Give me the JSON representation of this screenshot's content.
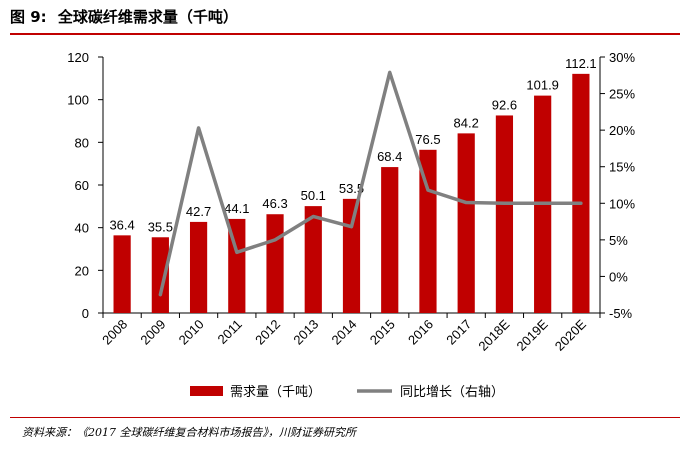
{
  "figure": {
    "label": "图 9:",
    "title": "全球碳纤维需求量（千吨）"
  },
  "source": "资料来源：《2017 全球碳纤维复合材料市场报告》，川财证券研究所",
  "colors": {
    "bar": "#c00000",
    "line": "#808080",
    "rule": "#c00000"
  },
  "chart_data": {
    "type": "bar+line",
    "title": "全球碳纤维需求量（千吨）",
    "categories": [
      "2008",
      "2009",
      "2010",
      "2011",
      "2012",
      "2013",
      "2014",
      "2015",
      "2016",
      "2017",
      "2018E",
      "2019E",
      "2020E"
    ],
    "series": [
      {
        "name": "需求量（千吨）",
        "type": "bar",
        "axis": "left",
        "values": [
          36.4,
          35.5,
          42.7,
          44.1,
          46.3,
          50.1,
          53.5,
          68.4,
          76.5,
          84.2,
          92.6,
          101.9,
          112.1
        ],
        "labels": [
          "36.4",
          "35.5",
          "42.7",
          "44.1",
          "46.3",
          "50.1",
          "53.5",
          "68.4",
          "76.5",
          "84.2",
          "92.6",
          "101.9",
          "112.1"
        ]
      },
      {
        "name": "同比增长（右轴）",
        "type": "line",
        "axis": "right",
        "values": [
          null,
          -2.5,
          20.3,
          3.3,
          5.0,
          8.2,
          6.8,
          27.9,
          11.8,
          10.1,
          10.0,
          10.0,
          10.0
        ]
      }
    ],
    "y_left": {
      "min": 0,
      "max": 120,
      "ticks": [
        "0",
        "20",
        "40",
        "60",
        "80",
        "100",
        "120"
      ]
    },
    "y_right": {
      "min": -5,
      "max": 30,
      "ticks": [
        "-5%",
        "0%",
        "5%",
        "10%",
        "15%",
        "20%",
        "25%",
        "30%"
      ]
    },
    "legend": [
      "需求量（千吨）",
      "同比增长（右轴）"
    ],
    "legend_position": "bottom"
  }
}
